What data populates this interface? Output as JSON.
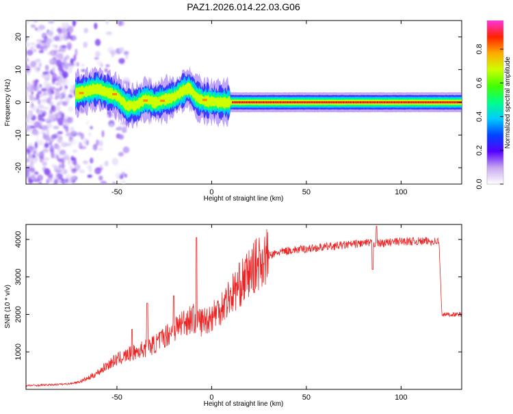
{
  "title": "PAZ1.2026.014.22.03.G06",
  "chart_data": [
    {
      "type": "heatmap",
      "title": "PAZ1.2026.014.22.03.G06",
      "xlabel": "Height of straight line (km)",
      "ylabel": "Frequency (Hz)",
      "xlim": [
        -98,
        132
      ],
      "ylim": [
        -25,
        25
      ],
      "xticks": [
        -50,
        0,
        50,
        100
      ],
      "yticks": [
        -20,
        -10,
        0,
        10,
        20
      ],
      "ridge": {
        "x": [
          -72,
          -66,
          -60,
          -55,
          -50,
          -45,
          -40,
          -35,
          -30,
          -25,
          -20,
          -15,
          -12,
          -8,
          -4,
          0,
          5,
          132
        ],
        "freq": [
          2.5,
          3.5,
          4.2,
          3.0,
          2.0,
          -1.0,
          -1.0,
          1.0,
          0.0,
          0.8,
          1.5,
          3.5,
          4.5,
          1.5,
          0.5,
          0.2,
          0.0,
          0.0
        ]
      },
      "noise_region_x": [
        -98,
        -72
      ],
      "colorbar": {
        "label": "Normalized spectral amplitude",
        "range": [
          0.0,
          0.97
        ],
        "ticks": [
          "0.0",
          "0.2",
          "0.4",
          "0.6",
          "0.8"
        ],
        "tick_values": [
          0.0,
          0.2,
          0.4,
          0.6,
          0.8
        ]
      }
    },
    {
      "type": "line",
      "xlabel": "Height of straight line (km)",
      "ylabel": "SNR (10 * v/v)",
      "xlim": [
        -98,
        132
      ],
      "ylim": [
        0,
        4400
      ],
      "xticks": [
        -50,
        0,
        50,
        100
      ],
      "yticks": [
        1000,
        2000,
        3000,
        4000
      ],
      "series": [
        {
          "name": "SNR",
          "color": "#ee2222",
          "x": [
            -98,
            -85,
            -75,
            -70,
            -65,
            -60,
            -55,
            -50,
            -45,
            -40,
            -35,
            -30,
            -25,
            -20,
            -15,
            -10,
            -5,
            0,
            5,
            10,
            15,
            20,
            25,
            30,
            35,
            40,
            50,
            60,
            70,
            80,
            90,
            100,
            110,
            120,
            121.5,
            125,
            132
          ],
          "values": [
            100,
            120,
            150,
            200,
            300,
            450,
            650,
            800,
            900,
            1000,
            1100,
            1200,
            1400,
            1600,
            1800,
            1900,
            1800,
            1950,
            2200,
            2500,
            2800,
            3100,
            3400,
            3550,
            3650,
            3700,
            3750,
            3800,
            3850,
            3900,
            3900,
            3950,
            3950,
            3950,
            2000,
            2000,
            2000
          ]
        }
      ],
      "spikes": [
        {
          "x": -42,
          "value": 1600
        },
        {
          "x": -34,
          "value": 2300
        },
        {
          "x": -20,
          "value": 2500
        },
        {
          "x": -8,
          "value": 4050
        },
        {
          "x": 85,
          "value": 3200
        },
        {
          "x": 87,
          "value": 4350
        }
      ]
    }
  ]
}
